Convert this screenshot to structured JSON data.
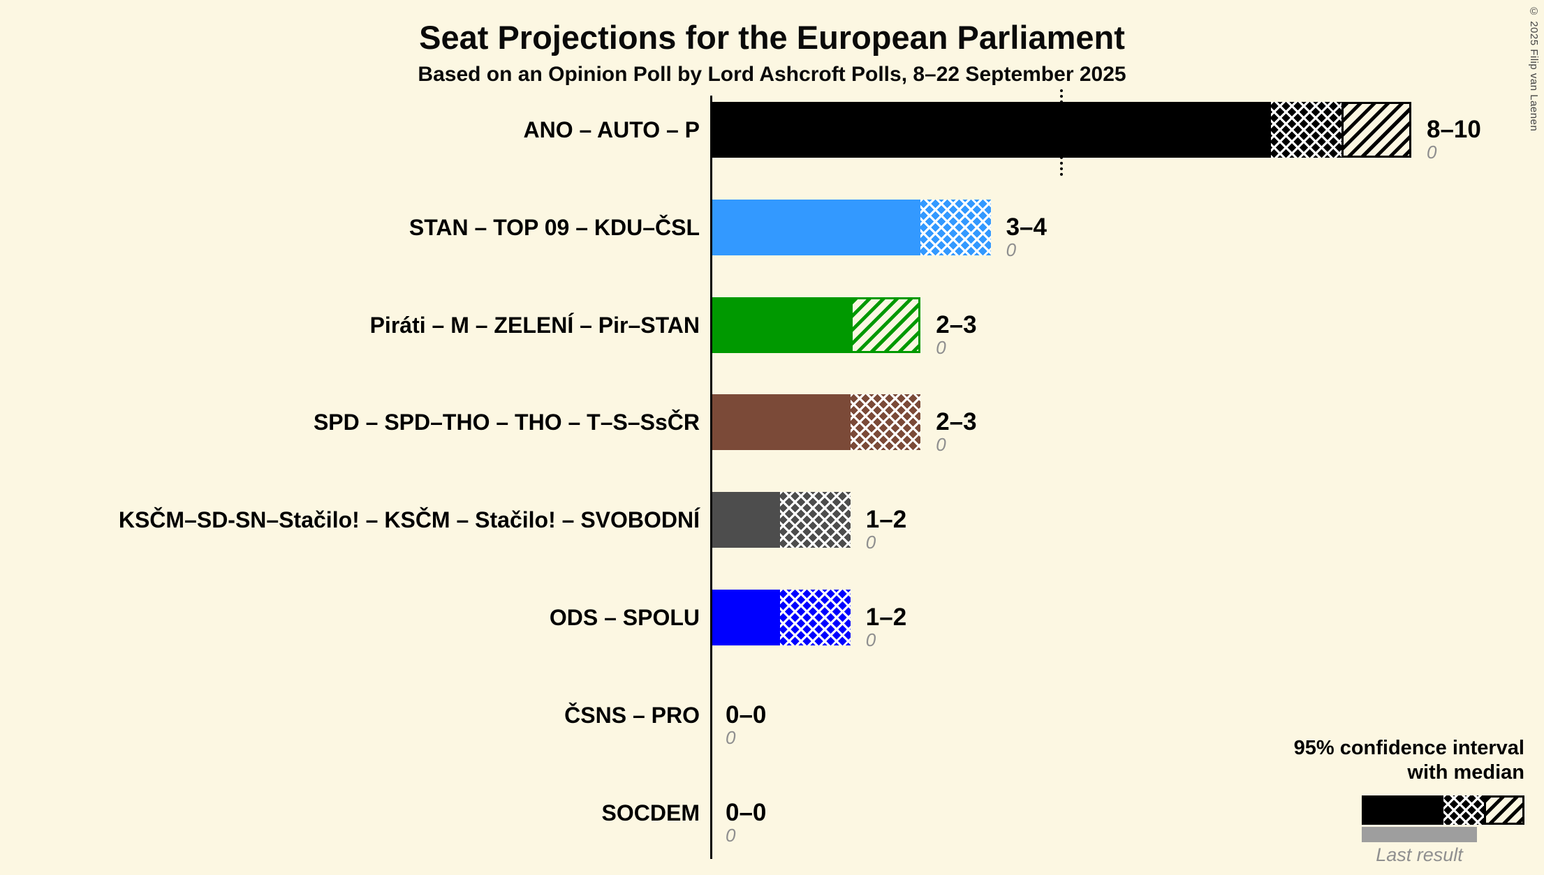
{
  "title": "Seat Projections for the European Parliament",
  "subtitle": "Based on an Opinion Poll by Lord Ashcroft Polls, 8–22 September 2025",
  "copyright": "© 2025 Filip van Laenen",
  "legend": {
    "ci_line1": "95% confidence interval",
    "ci_line2": "with median",
    "last_result": "Last result"
  },
  "chart_data": {
    "type": "bar",
    "orientation": "horizontal",
    "x_axis": {
      "min": 0,
      "max": 10,
      "dotted_marker": 5
    },
    "parties": [
      {
        "label": "ANO – AUTO – P",
        "color": "#000000",
        "low": 8,
        "median": 9,
        "high": 10,
        "range_label": "8–10",
        "last_result": "0"
      },
      {
        "label": "STAN – TOP 09 – KDU–ČSL",
        "color": "#3399FF",
        "low": 3,
        "median": 4,
        "high": 4,
        "range_label": "3–4",
        "last_result": "0"
      },
      {
        "label": "Piráti – M – ZELENÍ – Pir–STAN",
        "color": "#009900",
        "low": 2,
        "median": 2,
        "high": 3,
        "range_label": "2–3",
        "last_result": "0"
      },
      {
        "label": "SPD – SPD–THO – THO – T–S–SsČR",
        "color": "#7B4A38",
        "low": 2,
        "median": 3,
        "high": 3,
        "range_label": "2–3",
        "last_result": "0"
      },
      {
        "label": "KSČM–SD-SN–Stačilo! – KSČM – Stačilo! – SVOBODNÍ",
        "color": "#4D4D4D",
        "low": 1,
        "median": 2,
        "high": 2,
        "range_label": "1–2",
        "last_result": "0"
      },
      {
        "label": "ODS – SPOLU",
        "color": "#0000FF",
        "low": 1,
        "median": 2,
        "high": 2,
        "range_label": "1–2",
        "last_result": "0"
      },
      {
        "label": "ČSNS – PRO",
        "low": 0,
        "median": 0,
        "high": 0,
        "range_label": "0–0",
        "last_result": "0"
      },
      {
        "label": "SOCDEM",
        "low": 0,
        "median": 0,
        "high": 0,
        "range_label": "0–0",
        "last_result": "0"
      }
    ]
  }
}
